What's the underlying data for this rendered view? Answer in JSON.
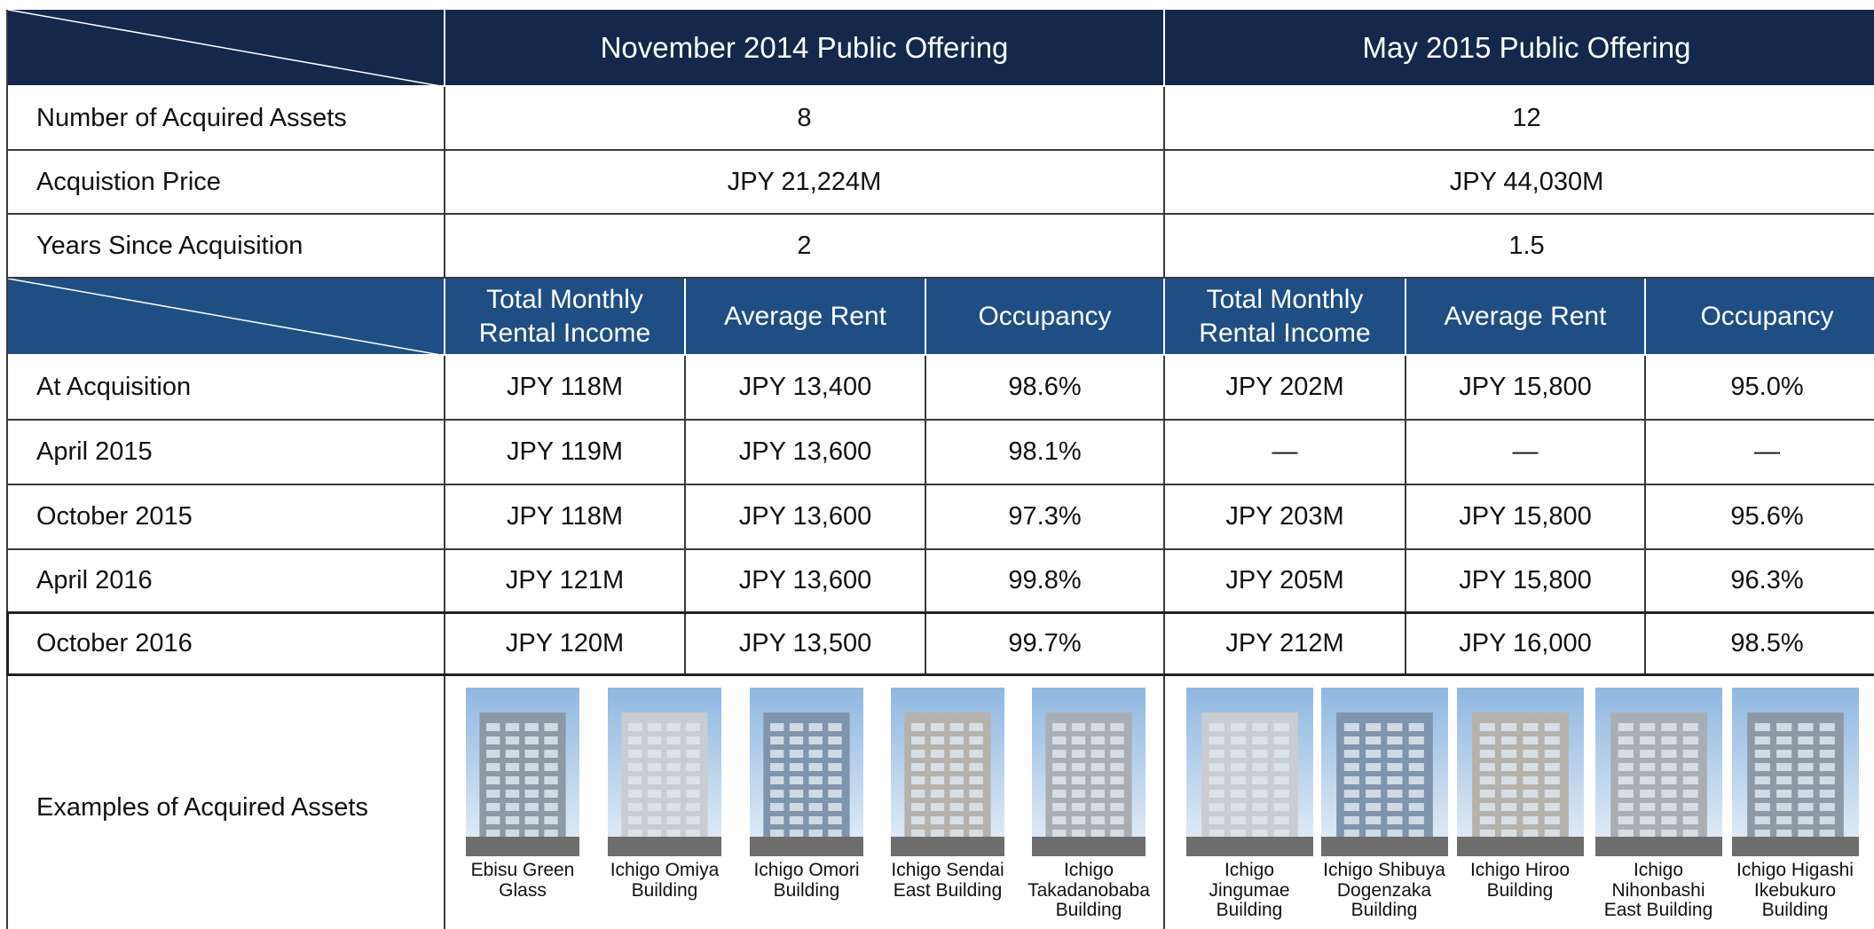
{
  "table": {
    "header": [
      "November 2014 Public Offering",
      "May 2015 Public Offering"
    ],
    "summary_rows": [
      {
        "label": "Number of Acquired Assets",
        "values": [
          "8",
          "12"
        ]
      },
      {
        "label": "Acquistion Price",
        "values": [
          "JPY 21,224M",
          "JPY 44,030M"
        ]
      },
      {
        "label": "Years Since Acquisition",
        "values": [
          "2",
          "1.5"
        ]
      }
    ],
    "subheader": [
      "Total Monthly Rental Income",
      "Average Rent",
      "Occupancy",
      "Total Monthly Rental Income",
      "Average Rent",
      "Occupancy"
    ],
    "rows": [
      {
        "label": "At Acquisition",
        "values": [
          "JPY 118M",
          "JPY 13,400",
          "98.6%",
          "JPY 202M",
          "JPY 15,800",
          "95.0%"
        ]
      },
      {
        "label": "April 2015",
        "values": [
          "JPY 119M",
          "JPY 13,600",
          "98.1%",
          "—",
          "—",
          "—"
        ]
      },
      {
        "label": "October 2015",
        "values": [
          "JPY 118M",
          "JPY 13,600",
          "97.3%",
          "JPY 203M",
          "JPY 15,800",
          "95.6%"
        ]
      },
      {
        "label": "April 2016",
        "values": [
          "JPY 121M",
          "JPY 13,600",
          "99.8%",
          "JPY 205M",
          "JPY 15,800",
          "96.3%"
        ]
      },
      {
        "label": "October 2016",
        "values": [
          "JPY 120M",
          "JPY 13,500",
          "99.7%",
          "JPY 212M",
          "JPY 16,000",
          "98.5%"
        ]
      }
    ],
    "examples": {
      "label": "Examples of Acquired Assets",
      "groups": [
        [
          "Ebisu Green Glass",
          "Ichigo Omiya Building",
          "Ichigo Omori Building",
          "Ichigo Sendai East Building",
          "Ichigo Takadanobaba Building"
        ],
        [
          "Ichigo Jingumae Building",
          "Ichigo Shibuya Dogenzaka Building",
          "Ichigo Hiroo Building",
          "Ichigo Nihonbashi East Building",
          "Ichigo Higashi Ikebukuro Building"
        ]
      ]
    }
  }
}
